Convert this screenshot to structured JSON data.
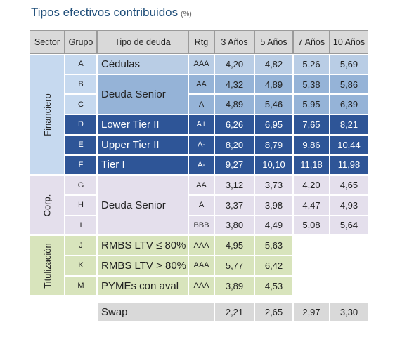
{
  "title": "Tipos efectivos contribuidos",
  "title_unit": "(%)",
  "table": {
    "headers": [
      "Sector",
      "Grupo",
      "Tipo de deuda",
      "Rtg",
      "3 Años",
      "5 Años",
      "7 Años",
      "10 Años"
    ],
    "sections": [
      {
        "sector": "Financiero",
        "groups": [
          {
            "tipo": "Cédulas",
            "rows": [
              {
                "grupo": "A",
                "rtg": "AAA",
                "values": [
                  "4,20",
                  "4,82",
                  "5,26",
                  "5,69"
                ]
              }
            ]
          },
          {
            "tipo": "Deuda Senior",
            "rows": [
              {
                "grupo": "B",
                "rtg": "AA",
                "values": [
                  "4,32",
                  "4,89",
                  "5,38",
                  "5,86"
                ]
              },
              {
                "grupo": "C",
                "rtg": "A",
                "values": [
                  "4,89",
                  "5,46",
                  "5,95",
                  "6,39"
                ]
              }
            ]
          },
          {
            "tipo": "Lower Tier II",
            "rows": [
              {
                "grupo": "D",
                "rtg": "A+",
                "values": [
                  "6,26",
                  "6,95",
                  "7,65",
                  "8,21"
                ]
              }
            ]
          },
          {
            "tipo": "Upper Tier II",
            "rows": [
              {
                "grupo": "E",
                "rtg": "A-",
                "values": [
                  "8,20",
                  "8,79",
                  "9,86",
                  "10,44"
                ]
              }
            ]
          },
          {
            "tipo": "Tier I",
            "rows": [
              {
                "grupo": "F",
                "rtg": "A-",
                "values": [
                  "9,27",
                  "10,10",
                  "11,18",
                  "11,98"
                ]
              }
            ]
          }
        ]
      },
      {
        "sector": "Corp.",
        "groups": [
          {
            "tipo": "Deuda Senior",
            "rows": [
              {
                "grupo": "G",
                "rtg": "AA",
                "values": [
                  "3,12",
                  "3,73",
                  "4,20",
                  "4,65"
                ]
              },
              {
                "grupo": "H",
                "rtg": "A",
                "values": [
                  "3,37",
                  "3,98",
                  "4,47",
                  "4,93"
                ]
              },
              {
                "grupo": "I",
                "rtg": "BBB",
                "values": [
                  "3,80",
                  "4,49",
                  "5,08",
                  "5,64"
                ]
              }
            ]
          }
        ]
      },
      {
        "sector": "Titulización",
        "groups": [
          {
            "tipo": "RMBS LTV ≤ 80%",
            "rows": [
              {
                "grupo": "J",
                "rtg": "AAA",
                "values": [
                  "4,95",
                  "5,63"
                ]
              }
            ]
          },
          {
            "tipo": "RMBS LTV > 80%",
            "rows": [
              {
                "grupo": "K",
                "rtg": "AAA",
                "values": [
                  "5,77",
                  "6,42"
                ]
              }
            ]
          },
          {
            "tipo": "PYMEs con aval",
            "rows": [
              {
                "grupo": "M",
                "rtg": "AAA",
                "values": [
                  "3,89",
                  "4,53"
                ]
              }
            ]
          }
        ]
      }
    ],
    "swap": {
      "label": "Swap",
      "values": [
        "2,21",
        "2,65",
        "2,97",
        "3,30"
      ]
    }
  }
}
